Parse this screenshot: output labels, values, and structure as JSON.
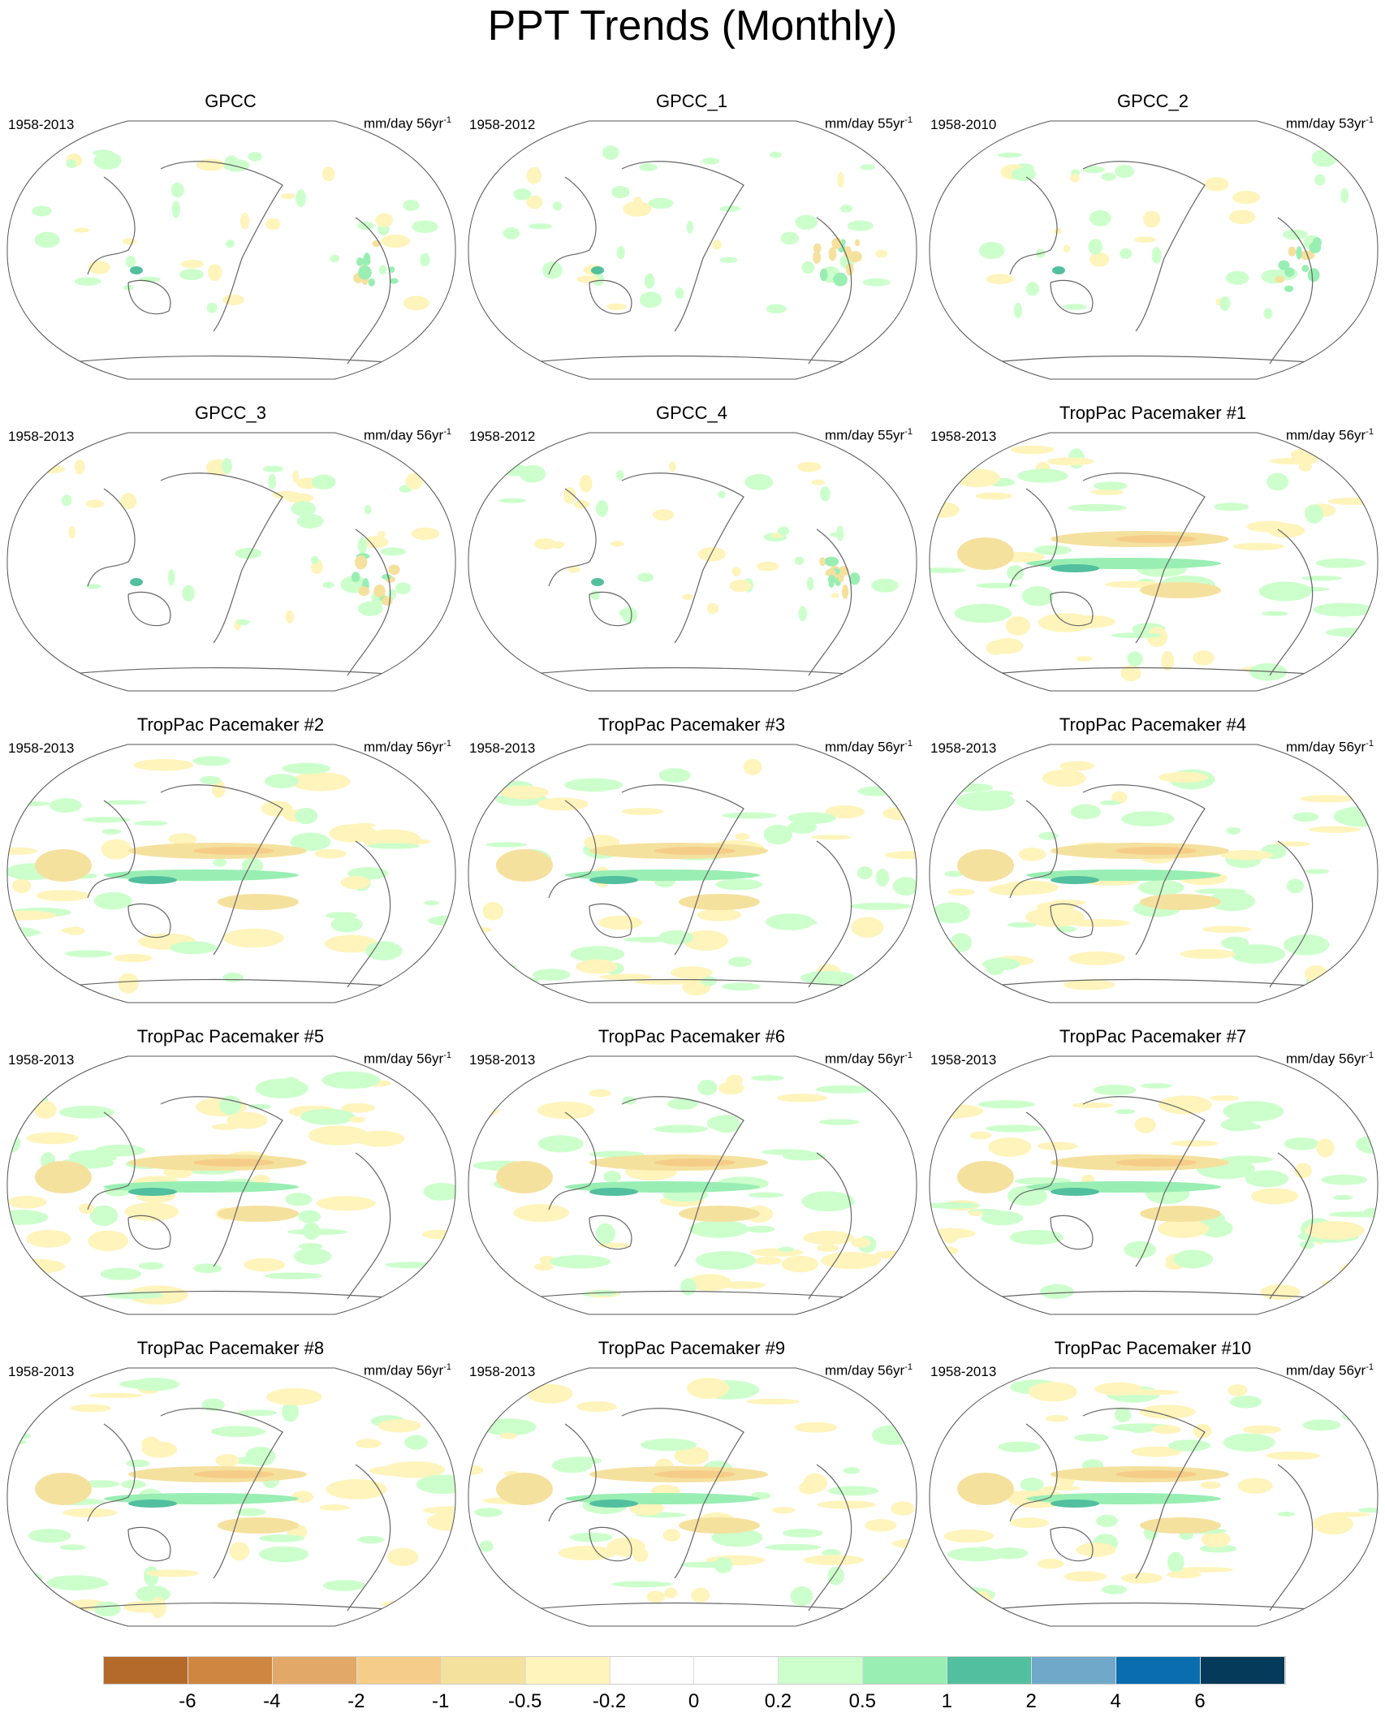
{
  "title": "PPT Trends (Monthly)",
  "chart_data": {
    "type": "heatmap",
    "title": "PPT Trends (Monthly)",
    "panels": [
      {
        "title": "GPCC",
        "period": "1958-2013",
        "units": "mm/day 56yr",
        "units_exp": "-1",
        "kind": "land"
      },
      {
        "title": "GPCC_1",
        "period": "1958-2012",
        "units": "mm/day 55yr",
        "units_exp": "-1",
        "kind": "land"
      },
      {
        "title": "GPCC_2",
        "period": "1958-2010",
        "units": "mm/day 53yr",
        "units_exp": "-1",
        "kind": "land"
      },
      {
        "title": "GPCC_3",
        "period": "1958-2013",
        "units": "mm/day 56yr",
        "units_exp": "-1",
        "kind": "land"
      },
      {
        "title": "GPCC_4",
        "period": "1958-2012",
        "units": "mm/day 55yr",
        "units_exp": "-1",
        "kind": "land"
      },
      {
        "title": "TropPac Pacemaker #1",
        "period": "1958-2013",
        "units": "mm/day 56yr",
        "units_exp": "-1",
        "kind": "global"
      },
      {
        "title": "TropPac Pacemaker #2",
        "period": "1958-2013",
        "units": "mm/day 56yr",
        "units_exp": "-1",
        "kind": "global"
      },
      {
        "title": "TropPac Pacemaker #3",
        "period": "1958-2013",
        "units": "mm/day 56yr",
        "units_exp": "-1",
        "kind": "global"
      },
      {
        "title": "TropPac Pacemaker #4",
        "period": "1958-2013",
        "units": "mm/day 56yr",
        "units_exp": "-1",
        "kind": "global"
      },
      {
        "title": "TropPac Pacemaker #5",
        "period": "1958-2013",
        "units": "mm/day 56yr",
        "units_exp": "-1",
        "kind": "global"
      },
      {
        "title": "TropPac Pacemaker #6",
        "period": "1958-2013",
        "units": "mm/day 56yr",
        "units_exp": "-1",
        "kind": "global"
      },
      {
        "title": "TropPac Pacemaker #7",
        "period": "1958-2013",
        "units": "mm/day 56yr",
        "units_exp": "-1",
        "kind": "global"
      },
      {
        "title": "TropPac Pacemaker #8",
        "period": "1958-2013",
        "units": "mm/day 56yr",
        "units_exp": "-1",
        "kind": "global"
      },
      {
        "title": "TropPac Pacemaker #9",
        "period": "1958-2013",
        "units": "mm/day 56yr",
        "units_exp": "-1",
        "kind": "global"
      },
      {
        "title": "TropPac Pacemaker #10",
        "period": "1958-2013",
        "units": "mm/day 56yr",
        "units_exp": "-1",
        "kind": "global"
      }
    ],
    "colorbar": {
      "levels": [
        "-6",
        "-4",
        "-2",
        "-1",
        "-0.5",
        "-0.2",
        "0",
        "0.2",
        "0.5",
        "1",
        "2",
        "4",
        "6"
      ],
      "colors": [
        "#b36a2a",
        "#ce8640",
        "#e2a867",
        "#f5cd88",
        "#f5e19e",
        "#fff4bb",
        "#ffffff",
        "#ffffff",
        "#ccffcc",
        "#99eeb3",
        "#52bf9e",
        "#6fa8c8",
        "#0a6eae",
        "#063a5a"
      ]
    }
  }
}
